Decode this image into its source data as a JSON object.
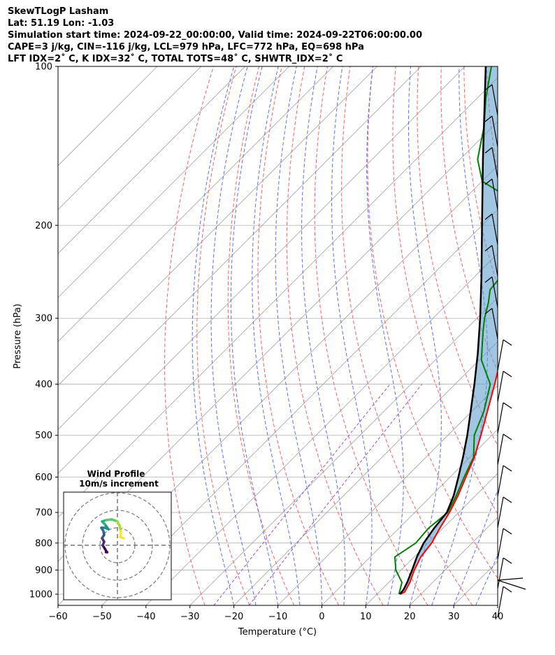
{
  "header": {
    "line1": "SkewTLogP Lasham",
    "line2": "Lat: 51.19   Lon: -1.03",
    "line3": "Simulation start time: 2024-09-22_00:00:00, Valid time: 2024-09-22T06:00:00.00",
    "line4": "CAPE=3 j/kg, CIN=-116 j/kg, LCL=979 hPa, LFC=772 hPa, EQ=698 hPa",
    "line5": "LFT IDX=2˚ C, K IDX=32˚ C, TOTAL TOTS=48˚ C, SHWTR_IDX=2˚ C"
  },
  "colors": {
    "temperature": "#ff0000",
    "dewpoint": "#008000",
    "parcel": "#000000",
    "cape_fill": "#5d9ccb",
    "dry_adiabats": "#ff6060",
    "moist_adiabats": "#5a6cff",
    "mixing_ratio": "#9b4cd0",
    "isotherms": "#a0a0a0"
  },
  "chart_data": [
    {
      "type": "line",
      "subtype": "skew-T log-P",
      "xlabel": "Temperature ($^\\circ$C)",
      "ylabel": "Pressure (hPa)",
      "xlim": [
        -60,
        40
      ],
      "ylim": [
        1050,
        100
      ],
      "x_ticks": [
        "−60",
        "−50",
        "−40",
        "−30",
        "−20",
        "−10",
        "0",
        "10",
        "20",
        "30",
        "40"
      ],
      "x_tick_values": [
        -60,
        -50,
        -40,
        -30,
        -20,
        -10,
        0,
        10,
        20,
        30,
        40
      ],
      "y_ticks": [
        "1000",
        "900",
        "800",
        "700",
        "600",
        "500",
        "400",
        "300",
        "200",
        "100"
      ],
      "y_tick_values": [
        1000,
        900,
        800,
        700,
        600,
        500,
        400,
        300,
        200,
        100
      ],
      "y_scale": "log",
      "grid": true,
      "series": [
        {
          "key": "temperature",
          "points": [
            [
              1000,
              15.4
            ],
            [
              990,
              15.8
            ],
            [
              950,
              14.8
            ],
            [
              900,
              13.0
            ],
            [
              850,
              11.5
            ],
            [
              800,
              10.8
            ],
            [
              750,
              9.3
            ],
            [
              700,
              7.9
            ],
            [
              650,
              6.0
            ],
            [
              600,
              3.6
            ],
            [
              550,
              1.0
            ],
            [
              500,
              -2.5
            ],
            [
              450,
              -6.5
            ],
            [
              400,
              -11.0
            ],
            [
              350,
              -16.3
            ],
            [
              300,
              -22.3
            ],
            [
              265,
              -27.7
            ],
            [
              250,
              -30.7
            ],
            [
              235,
              -35.0
            ],
            [
              212,
              -40.5
            ],
            [
              195,
              -45.8
            ],
            [
              175,
              -50.0
            ],
            [
              160,
              -53.0
            ],
            [
              150,
              -55.5
            ],
            [
              140,
              -58.2
            ],
            [
              130,
              -60.8
            ],
            [
              115,
              -64.0
            ],
            [
              100,
              -67.8
            ]
          ]
        },
        {
          "key": "dewpoint",
          "points": [
            [
              1000,
              15.0
            ],
            [
              950,
              13.0
            ],
            [
              900,
              8.8
            ],
            [
              850,
              5.6
            ],
            [
              800,
              7.2
            ],
            [
              750,
              6.7
            ],
            [
              700,
              7.5
            ],
            [
              650,
              5.6
            ],
            [
              600,
              3.2
            ],
            [
              550,
              0.8
            ],
            [
              500,
              -4.0
            ],
            [
              450,
              -7.3
            ],
            [
              400,
              -12.0
            ],
            [
              360,
              -19.5
            ],
            [
              320,
              -25.3
            ],
            [
              300,
              -28.3
            ],
            [
              280,
              -31.0
            ],
            [
              265,
              -33.5
            ],
            [
              240,
              -34.5
            ],
            [
              230,
              -34.8
            ],
            [
              215,
              -35.5
            ],
            [
              200,
              -40.0
            ],
            [
              185,
              -46.0
            ],
            [
              175,
              -52.0
            ],
            [
              165,
              -60.0
            ],
            [
              150,
              -66.0
            ],
            [
              130,
              -72.0
            ],
            [
              115,
              -78.0
            ],
            [
              100,
              -84.0
            ]
          ]
        },
        {
          "key": "parcel",
          "points": [
            [
              1000,
              15.2
            ],
            [
              980,
              15.0
            ],
            [
              950,
              14.2
            ],
            [
              900,
              12.5
            ],
            [
              850,
              10.6
            ],
            [
              800,
              9.0
            ],
            [
              750,
              8.0
            ],
            [
              700,
              7.3
            ],
            [
              650,
              5.0
            ],
            [
              600,
              1.9
            ],
            [
              550,
              -1.6
            ],
            [
              500,
              -5.6
            ],
            [
              450,
              -10.3
            ],
            [
              400,
              -15.6
            ],
            [
              350,
              -21.8
            ],
            [
              300,
              -29.3
            ],
            [
              250,
              -38.5
            ],
            [
              200,
              -50.0
            ],
            [
              150,
              -64.8
            ],
            [
              100,
              -85.3
            ]
          ]
        }
      ],
      "legend": "none"
    },
    {
      "type": "scatter",
      "subtype": "hodograph",
      "title": "Wind Profile",
      "subtitle": "10m/s increment",
      "rings_ms": [
        10,
        20,
        30
      ],
      "color_map": "viridis"
    }
  ]
}
